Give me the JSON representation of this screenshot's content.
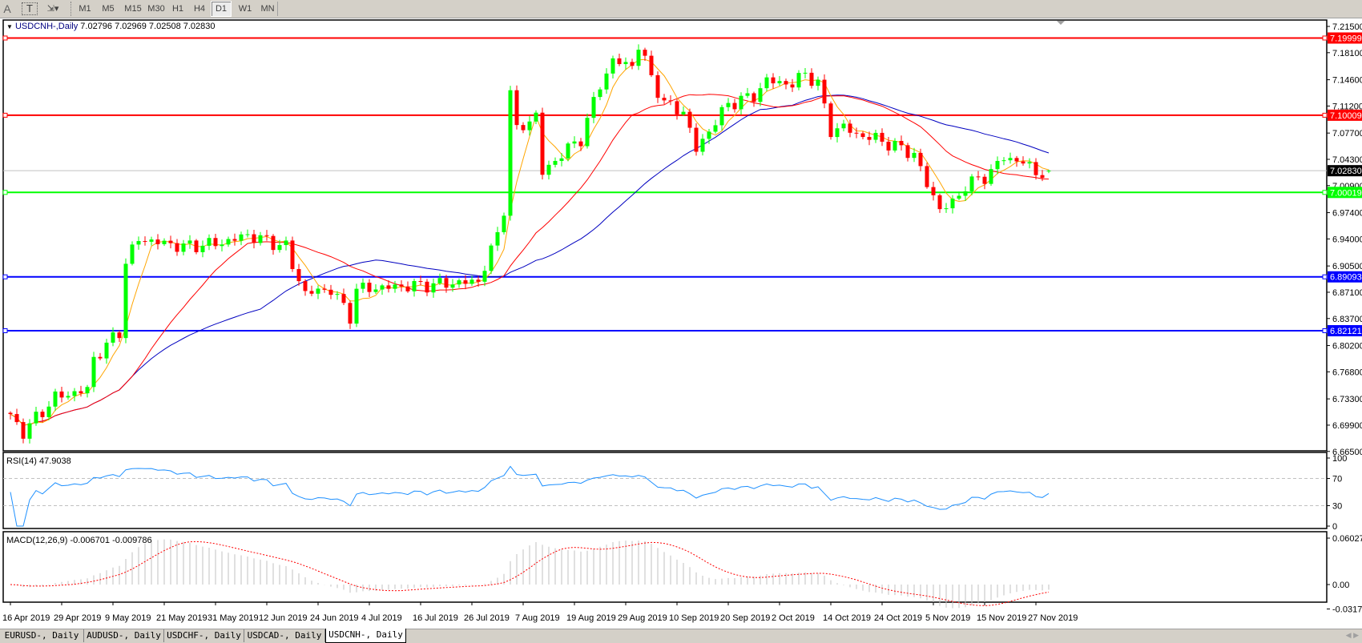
{
  "toolbar": {
    "tools": [
      {
        "icon": "text-label-icon",
        "label": "A"
      },
      {
        "icon": "text-box-icon",
        "label": "T"
      },
      {
        "icon": "arrows-dropdown-icon",
        "label": "▾"
      }
    ],
    "periods": [
      "M1",
      "M5",
      "M15",
      "M30",
      "H1",
      "H4",
      "D1",
      "W1",
      "MN"
    ],
    "active_period": "D1"
  },
  "chart": {
    "menu_icon": "▼",
    "symbol": "USDCNH-,Daily",
    "ohlc": "7.02796 7.02969 7.02508 7.02830"
  },
  "chart_data": {
    "type": "candlestick",
    "symbol": "USDCNH-",
    "timeframe": "Daily",
    "last": {
      "open": 7.02796,
      "high": 7.02969,
      "low": 7.02508,
      "close": 7.0283
    },
    "current_price_label": "7.02830",
    "price_range": [
      6.665,
      7.215
    ],
    "price_ticks": [
      "7.21500",
      "7.18100",
      "7.14600",
      "7.11200",
      "7.07700",
      "7.04300",
      "7.00900",
      "6.97400",
      "6.94000",
      "6.90500",
      "6.87100",
      "6.83700",
      "6.80200",
      "6.76800",
      "6.73300",
      "6.69900",
      "6.66500"
    ],
    "levels": [
      {
        "label": "7.19999",
        "color": "#ff0000"
      },
      {
        "label": "7.10009",
        "color": "#ff0000"
      },
      {
        "label": "7.00019",
        "color": "#00ff00"
      },
      {
        "label": "6.89093",
        "color": "#0000ff"
      },
      {
        "label": "6.82121",
        "color": "#0000ff"
      }
    ],
    "colors": {
      "bull": "#00ff00",
      "bear": "#ff0000",
      "ma_fast": "#ffa500",
      "ma_mid": "#ff0000",
      "ma_slow": "#0000c0",
      "rsi": "#1e90ff",
      "macd_hist": "#c0c0c0",
      "macd_signal": "#ff0000"
    },
    "close_keypoints": [
      [
        "2019-04-16",
        6.71
      ],
      [
        "2019-04-18",
        6.69
      ],
      [
        "2019-04-25",
        6.735
      ],
      [
        "2019-05-03",
        6.745
      ],
      [
        "2019-05-06",
        6.785
      ],
      [
        "2019-05-10",
        6.82
      ],
      [
        "2019-05-13",
        6.91
      ],
      [
        "2019-05-15",
        6.94
      ],
      [
        "2019-05-24",
        6.93
      ],
      [
        "2019-06-03",
        6.935
      ],
      [
        "2019-06-07",
        6.945
      ],
      [
        "2019-06-17",
        6.93
      ],
      [
        "2019-06-18",
        6.905
      ],
      [
        "2019-06-20",
        6.87
      ],
      [
        "2019-06-26",
        6.875
      ],
      [
        "2019-07-01",
        6.84
      ],
      [
        "2019-07-02",
        6.875
      ],
      [
        "2019-07-16",
        6.88
      ],
      [
        "2019-07-29",
        6.885
      ],
      [
        "2019-08-01",
        6.945
      ],
      [
        "2019-08-02",
        6.98
      ],
      [
        "2019-08-05",
        7.13
      ],
      [
        "2019-08-06",
        7.08
      ],
      [
        "2019-08-09",
        7.1
      ],
      [
        "2019-08-12",
        7.025
      ],
      [
        "2019-08-15",
        7.05
      ],
      [
        "2019-08-20",
        7.07
      ],
      [
        "2019-08-23",
        7.14
      ],
      [
        "2019-08-27",
        7.17
      ],
      [
        "2019-08-30",
        7.165
      ],
      [
        "2019-09-02",
        7.19
      ],
      [
        "2019-09-04",
        7.15
      ],
      [
        "2019-09-06",
        7.115
      ],
      [
        "2019-09-11",
        7.105
      ],
      [
        "2019-09-13",
        7.055
      ],
      [
        "2019-09-17",
        7.08
      ],
      [
        "2019-09-20",
        7.115
      ],
      [
        "2019-09-26",
        7.125
      ],
      [
        "2019-09-30",
        7.145
      ],
      [
        "2019-10-04",
        7.14
      ],
      [
        "2019-10-08",
        7.155
      ],
      [
        "2019-10-10",
        7.14
      ],
      [
        "2019-10-14",
        7.08
      ],
      [
        "2019-10-16",
        7.085
      ],
      [
        "2019-10-18",
        7.075
      ],
      [
        "2019-10-23",
        7.07
      ],
      [
        "2019-10-28",
        7.06
      ],
      [
        "2019-10-31",
        7.05
      ],
      [
        "2019-11-04",
        7.01
      ],
      [
        "2019-11-06",
        6.98
      ],
      [
        "2019-11-08",
        6.985
      ],
      [
        "2019-11-12",
        7.01
      ],
      [
        "2019-11-15",
        7.02
      ],
      [
        "2019-11-20",
        7.045
      ],
      [
        "2019-11-25",
        7.04
      ],
      [
        "2019-11-27",
        7.025
      ],
      [
        "2019-11-29",
        7.0283
      ]
    ],
    "time_labels": [
      "16 Apr 2019",
      "29 Apr 2019",
      "9 May 2019",
      "21 May 2019",
      "31 May 2019",
      "12 Jun 2019",
      "24 Jun 2019",
      "4 Jul 2019",
      "16 Jul 2019",
      "26 Jul 2019",
      "7 Aug 2019",
      "19 Aug 2019",
      "29 Aug 2019",
      "10 Sep 2019",
      "20 Sep 2019",
      "2 Oct 2019",
      "14 Oct 2019",
      "24 Oct 2019",
      "5 Nov 2019",
      "15 Nov 2019",
      "27 Nov 2019"
    ],
    "rsi": {
      "label": "RSI(14) 47.9038",
      "value": 47.9038,
      "ticks": [
        "100",
        "70",
        "30",
        "0"
      ],
      "levels": [
        70,
        30
      ]
    },
    "macd": {
      "label": "MACD(12,26,9) -0.006701 -0.009786",
      "main": -0.006701,
      "signal": -0.009786,
      "ticks": [
        "0.060273",
        "0.00",
        "-0.031725"
      ]
    }
  },
  "tabs": [
    {
      "label": "EURUSD-, Daily"
    },
    {
      "label": "AUDUSD-, Daily"
    },
    {
      "label": "USDCHF-, Daily"
    },
    {
      "label": "USDCAD-, Daily"
    },
    {
      "label": "USDCNH-, Daily"
    }
  ],
  "active_tab": "USDCNH-, Daily"
}
